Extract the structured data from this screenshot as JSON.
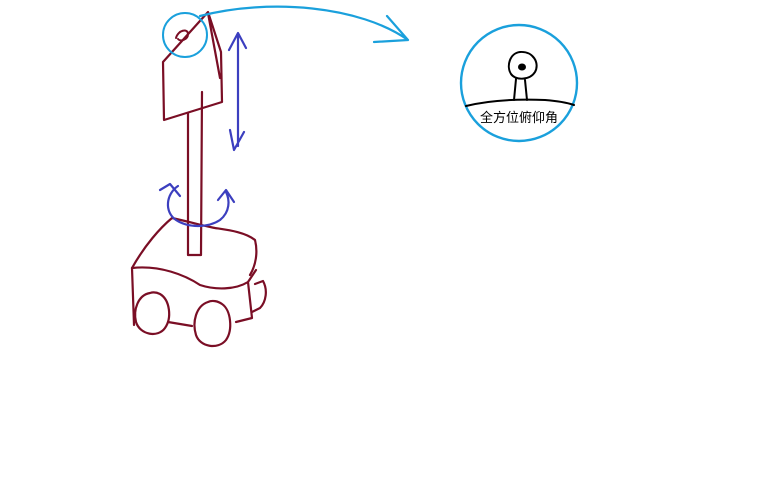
{
  "detail": {
    "label": "全方位俯仰角"
  },
  "colors": {
    "robot": "#7a0e25",
    "motion_arrows": "#3c3fbf",
    "callout": "#1aa0dc",
    "detail_ink": "#000000",
    "background": "#ffffff"
  },
  "icons": {
    "robot": "robot-sketch",
    "rotation": "rotation-arrow-icon",
    "vertical_motion": "double-arrow-icon",
    "callout_arrow": "curved-arrow-icon"
  }
}
